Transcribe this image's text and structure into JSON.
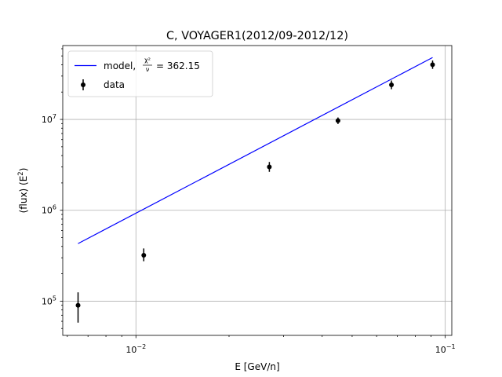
{
  "chart_data": {
    "type": "scatter",
    "title": "C, VOYAGER1(2012/09-2012/12)",
    "xlabel": "E [GeV/n]",
    "ylabel": "(flux)  (E",
    "ylabel_sup": "2",
    "ylabel_close": ")",
    "xscale": "log",
    "yscale": "log",
    "xlim": [
      0.0058,
      0.105
    ],
    "ylim": [
      42000,
      65000000
    ],
    "grid": true,
    "legend_position": "upper-left",
    "x_ticks": [
      {
        "value": 0.01,
        "base": "10",
        "exp": "−2"
      },
      {
        "value": 0.1,
        "base": "10",
        "exp": "−1"
      }
    ],
    "y_ticks": [
      {
        "value": 100000,
        "base": "10",
        "exp": "5"
      },
      {
        "value": 1000000,
        "base": "10",
        "exp": "6"
      },
      {
        "value": 10000000,
        "base": "10",
        "exp": "7"
      }
    ],
    "series": [
      {
        "name": "model",
        "legend_label": "model,",
        "legend_value": "= 362.15",
        "legend_frac_num": "χ²",
        "legend_frac_den": "ν",
        "kind": "line",
        "color": "#0000ff",
        "x": [
          0.0065,
          0.091
        ],
        "y": [
          430000,
          48000000
        ]
      },
      {
        "name": "data",
        "legend_label": "data",
        "kind": "errorbar",
        "color": "#000000",
        "points": [
          {
            "x": 0.0065,
            "y": 90000,
            "ylow": 58000,
            "yhigh": 125000
          },
          {
            "x": 0.0106,
            "y": 320000,
            "ylow": 275000,
            "yhigh": 380000
          },
          {
            "x": 0.027,
            "y": 3000000,
            "ylow": 2650000,
            "yhigh": 3400000
          },
          {
            "x": 0.045,
            "y": 9700000,
            "ylow": 8900000,
            "yhigh": 10500000
          },
          {
            "x": 0.067,
            "y": 24000000,
            "ylow": 21500000,
            "yhigh": 26800000
          },
          {
            "x": 0.091,
            "y": 40000000,
            "ylow": 36000000,
            "yhigh": 44500000
          }
        ]
      }
    ]
  }
}
